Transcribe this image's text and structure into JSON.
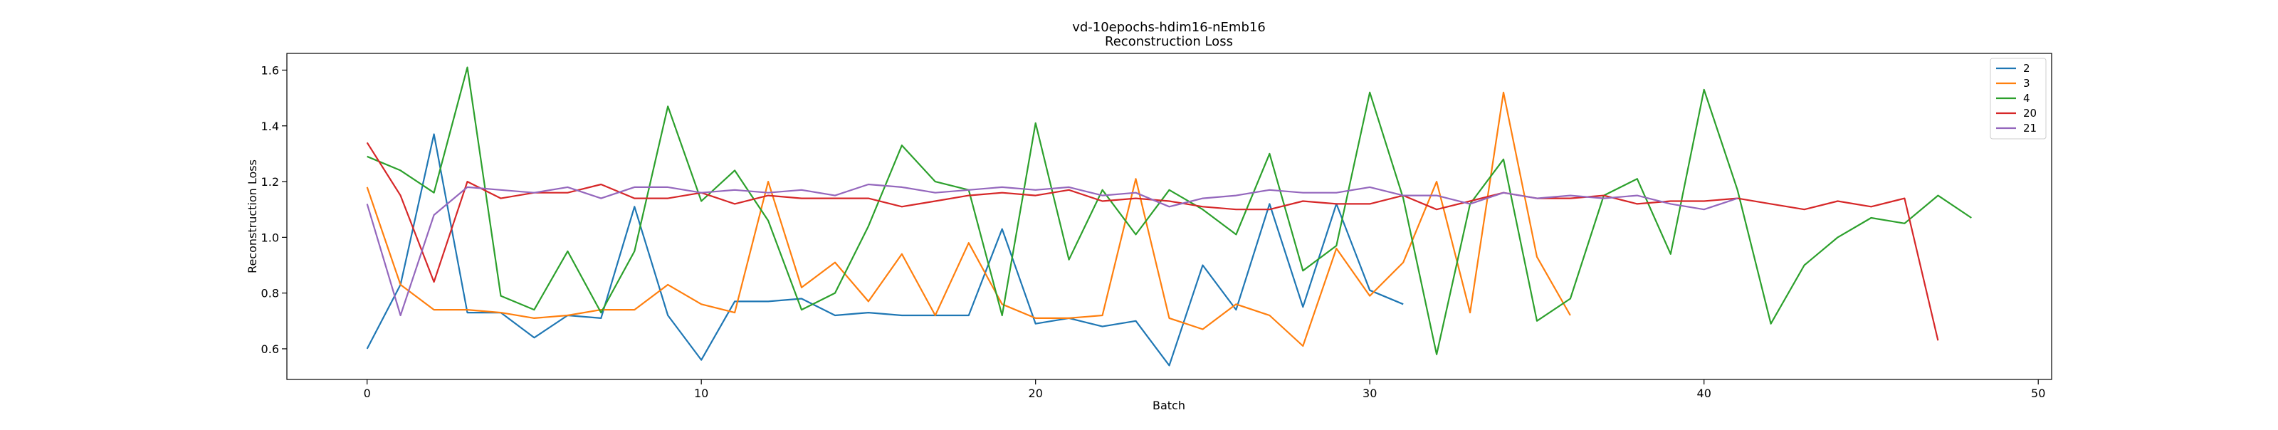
{
  "chart_data": {
    "type": "line",
    "title": "vd-10epochs-hdim16-nEmb16",
    "subtitle": "Reconstruction Loss",
    "xlabel": "Batch",
    "ylabel": "Reconstruction Loss",
    "xlim": [
      -2.4,
      50.4
    ],
    "ylim": [
      0.49,
      1.66
    ],
    "xticks": [
      0,
      10,
      20,
      30,
      40,
      50
    ],
    "xtick_labels": [
      "0",
      "10",
      "20",
      "30",
      "40",
      "50"
    ],
    "yticks": [
      0.6,
      0.8,
      1.0,
      1.2,
      1.4,
      1.6
    ],
    "ytick_labels": [
      "0.6",
      "0.8",
      "1.0",
      "1.2",
      "1.4",
      "1.6"
    ],
    "grid": false,
    "legend_position": "top-right",
    "series": [
      {
        "name": "2",
        "color": "#1f77b4",
        "x": [
          0,
          1,
          2,
          3,
          4,
          5,
          6,
          7,
          8,
          9,
          10,
          11,
          12,
          13,
          14,
          15,
          16,
          17,
          18,
          19,
          20,
          21,
          22,
          23,
          24,
          25,
          26,
          27,
          28,
          29,
          30,
          31
        ],
        "y": [
          0.6,
          0.83,
          1.37,
          0.73,
          0.73,
          0.64,
          0.72,
          0.71,
          1.11,
          0.72,
          0.56,
          0.77,
          0.77,
          0.78,
          0.72,
          0.73,
          0.72,
          0.72,
          0.72,
          1.03,
          0.69,
          0.71,
          0.68,
          0.7,
          0.54,
          0.9,
          0.74,
          1.12,
          0.75,
          1.12,
          0.81,
          0.76
        ]
      },
      {
        "name": "3",
        "color": "#ff7f0e",
        "x": [
          0,
          1,
          2,
          3,
          4,
          5,
          6,
          7,
          8,
          9,
          10,
          11,
          12,
          13,
          14,
          15,
          16,
          17,
          18,
          19,
          20,
          21,
          22,
          23,
          24,
          25,
          26,
          27,
          28,
          29,
          30,
          31,
          32,
          33,
          34,
          35,
          36
        ],
        "y": [
          1.18,
          0.83,
          0.74,
          0.74,
          0.73,
          0.71,
          0.72,
          0.74,
          0.74,
          0.83,
          0.76,
          0.73,
          1.2,
          0.82,
          0.91,
          0.77,
          0.94,
          0.72,
          0.98,
          0.76,
          0.71,
          0.71,
          0.72,
          1.21,
          0.71,
          0.67,
          0.76,
          0.72,
          0.61,
          0.96,
          0.79,
          0.91,
          1.2,
          0.73,
          1.52,
          0.93,
          0.72
        ]
      },
      {
        "name": "4",
        "color": "#2ca02c",
        "x": [
          0,
          1,
          2,
          3,
          4,
          5,
          6,
          7,
          8,
          9,
          10,
          11,
          12,
          13,
          14,
          15,
          16,
          17,
          18,
          19,
          20,
          21,
          22,
          23,
          24,
          25,
          26,
          27,
          28,
          29,
          30,
          31,
          32,
          33,
          34,
          35,
          36,
          37,
          38,
          39,
          40,
          41,
          42,
          43,
          44,
          45,
          46,
          47,
          48
        ],
        "y": [
          1.29,
          1.24,
          1.16,
          1.61,
          0.79,
          0.74,
          0.95,
          0.73,
          0.95,
          1.47,
          1.13,
          1.24,
          1.06,
          0.74,
          0.8,
          1.04,
          1.33,
          1.2,
          1.17,
          0.72,
          1.41,
          0.92,
          1.17,
          1.01,
          1.17,
          1.1,
          1.01,
          1.3,
          0.88,
          0.97,
          1.52,
          1.14,
          0.58,
          1.12,
          1.28,
          0.7,
          0.78,
          1.15,
          1.21,
          0.94,
          1.53,
          1.17,
          0.69,
          0.9,
          1.0,
          1.07,
          1.05,
          1.15,
          1.07
        ]
      },
      {
        "name": "20",
        "color": "#d62728",
        "x": [
          0,
          1,
          2,
          3,
          4,
          5,
          6,
          7,
          8,
          9,
          10,
          11,
          12,
          13,
          14,
          15,
          16,
          17,
          18,
          19,
          20,
          21,
          22,
          23,
          24,
          25,
          26,
          27,
          28,
          29,
          30,
          31,
          32,
          33,
          34,
          35,
          36,
          37,
          38,
          39,
          40,
          41,
          42,
          43,
          44,
          45,
          46,
          47
        ],
        "y": [
          1.34,
          1.15,
          0.84,
          1.2,
          1.14,
          1.16,
          1.16,
          1.19,
          1.14,
          1.14,
          1.16,
          1.12,
          1.15,
          1.14,
          1.14,
          1.14,
          1.11,
          1.13,
          1.15,
          1.16,
          1.15,
          1.17,
          1.13,
          1.14,
          1.13,
          1.11,
          1.1,
          1.1,
          1.13,
          1.12,
          1.12,
          1.15,
          1.1,
          1.13,
          1.16,
          1.14,
          1.14,
          1.15,
          1.12,
          1.13,
          1.13,
          1.14,
          1.12,
          1.1,
          1.13,
          1.11,
          1.14,
          0.63
        ]
      },
      {
        "name": "21",
        "color": "#9467bd",
        "x": [
          0,
          1,
          2,
          3,
          4,
          5,
          6,
          7,
          8,
          9,
          10,
          11,
          12,
          13,
          14,
          15,
          16,
          17,
          18,
          19,
          20,
          21,
          22,
          23,
          24,
          25,
          26,
          27,
          28,
          29,
          30,
          31,
          32,
          33,
          34,
          35,
          36,
          37,
          38,
          39,
          40,
          41
        ],
        "y": [
          1.12,
          0.72,
          1.08,
          1.18,
          1.17,
          1.16,
          1.18,
          1.14,
          1.18,
          1.18,
          1.16,
          1.17,
          1.16,
          1.17,
          1.15,
          1.19,
          1.18,
          1.16,
          1.17,
          1.18,
          1.17,
          1.18,
          1.15,
          1.16,
          1.11,
          1.14,
          1.15,
          1.17,
          1.16,
          1.16,
          1.18,
          1.15,
          1.15,
          1.12,
          1.16,
          1.14,
          1.15,
          1.14,
          1.15,
          1.12,
          1.1,
          1.14
        ]
      }
    ]
  }
}
